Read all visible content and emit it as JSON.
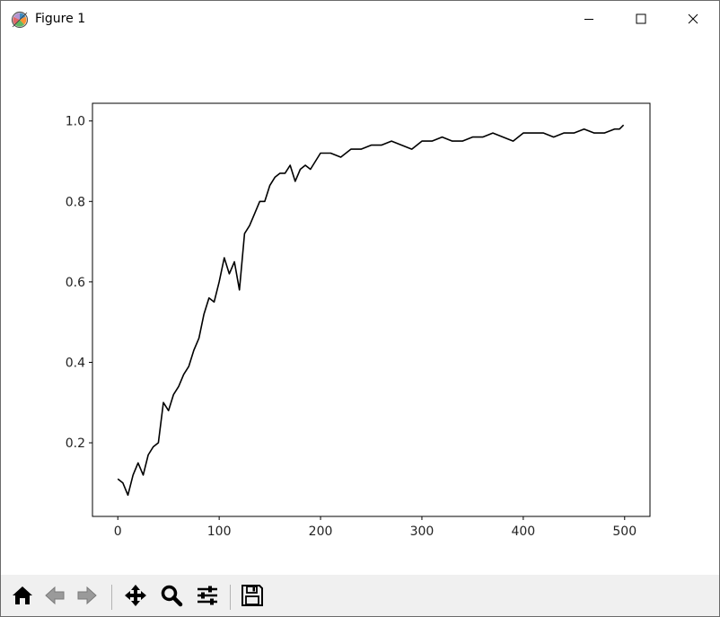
{
  "window": {
    "title": "Figure 1",
    "icons": {
      "app": "matplotlib-logo-icon",
      "minimize": "minimize-icon",
      "maximize": "maximize-icon",
      "close": "close-icon"
    }
  },
  "toolbar": {
    "buttons": [
      {
        "name": "home-button",
        "icon": "home-icon"
      },
      {
        "name": "back-button",
        "icon": "arrow-left-icon"
      },
      {
        "name": "forward-button",
        "icon": "arrow-right-icon"
      },
      {
        "name": "pan-button",
        "icon": "move-icon"
      },
      {
        "name": "zoom-button",
        "icon": "magnifier-icon"
      },
      {
        "name": "configure-subplots-button",
        "icon": "sliders-icon"
      },
      {
        "name": "save-button",
        "icon": "floppy-disk-icon"
      }
    ]
  },
  "chart_data": {
    "type": "line",
    "title": "",
    "xlabel": "",
    "ylabel": "",
    "xlim": [
      -25,
      525
    ],
    "ylim": [
      0.017,
      1.044
    ],
    "xticks": [
      0,
      100,
      200,
      300,
      400,
      500
    ],
    "xtick_labels": [
      "0",
      "100",
      "200",
      "300",
      "400",
      "500"
    ],
    "yticks": [
      0.2,
      0.4,
      0.6,
      0.8,
      1.0
    ],
    "ytick_labels": [
      "0.2",
      "0.4",
      "0.6",
      "0.8",
      "1.0"
    ],
    "grid": false,
    "line_color": "#000000",
    "series": [
      {
        "x": [
          0,
          5,
          10,
          15,
          20,
          25,
          30,
          35,
          40,
          45,
          50,
          55,
          60,
          65,
          70,
          75,
          80,
          85,
          90,
          95,
          100,
          105,
          110,
          115,
          120,
          125,
          130,
          135,
          140,
          145,
          150,
          155,
          160,
          165,
          170,
          175,
          180,
          185,
          190,
          195,
          200,
          210,
          220,
          230,
          240,
          250,
          260,
          270,
          280,
          290,
          300,
          310,
          320,
          330,
          340,
          350,
          360,
          370,
          380,
          390,
          400,
          410,
          420,
          430,
          440,
          450,
          460,
          470,
          480,
          490,
          495,
          499
        ],
        "y": [
          0.11,
          0.1,
          0.07,
          0.12,
          0.15,
          0.12,
          0.17,
          0.19,
          0.2,
          0.3,
          0.28,
          0.32,
          0.34,
          0.37,
          0.39,
          0.43,
          0.46,
          0.52,
          0.56,
          0.55,
          0.6,
          0.66,
          0.62,
          0.65,
          0.58,
          0.72,
          0.74,
          0.77,
          0.8,
          0.8,
          0.84,
          0.86,
          0.87,
          0.87,
          0.89,
          0.85,
          0.88,
          0.89,
          0.88,
          0.9,
          0.92,
          0.92,
          0.91,
          0.93,
          0.93,
          0.94,
          0.94,
          0.95,
          0.94,
          0.93,
          0.95,
          0.95,
          0.96,
          0.95,
          0.95,
          0.96,
          0.96,
          0.97,
          0.96,
          0.95,
          0.97,
          0.97,
          0.97,
          0.96,
          0.97,
          0.97,
          0.98,
          0.97,
          0.97,
          0.98,
          0.98,
          0.99
        ]
      }
    ]
  }
}
